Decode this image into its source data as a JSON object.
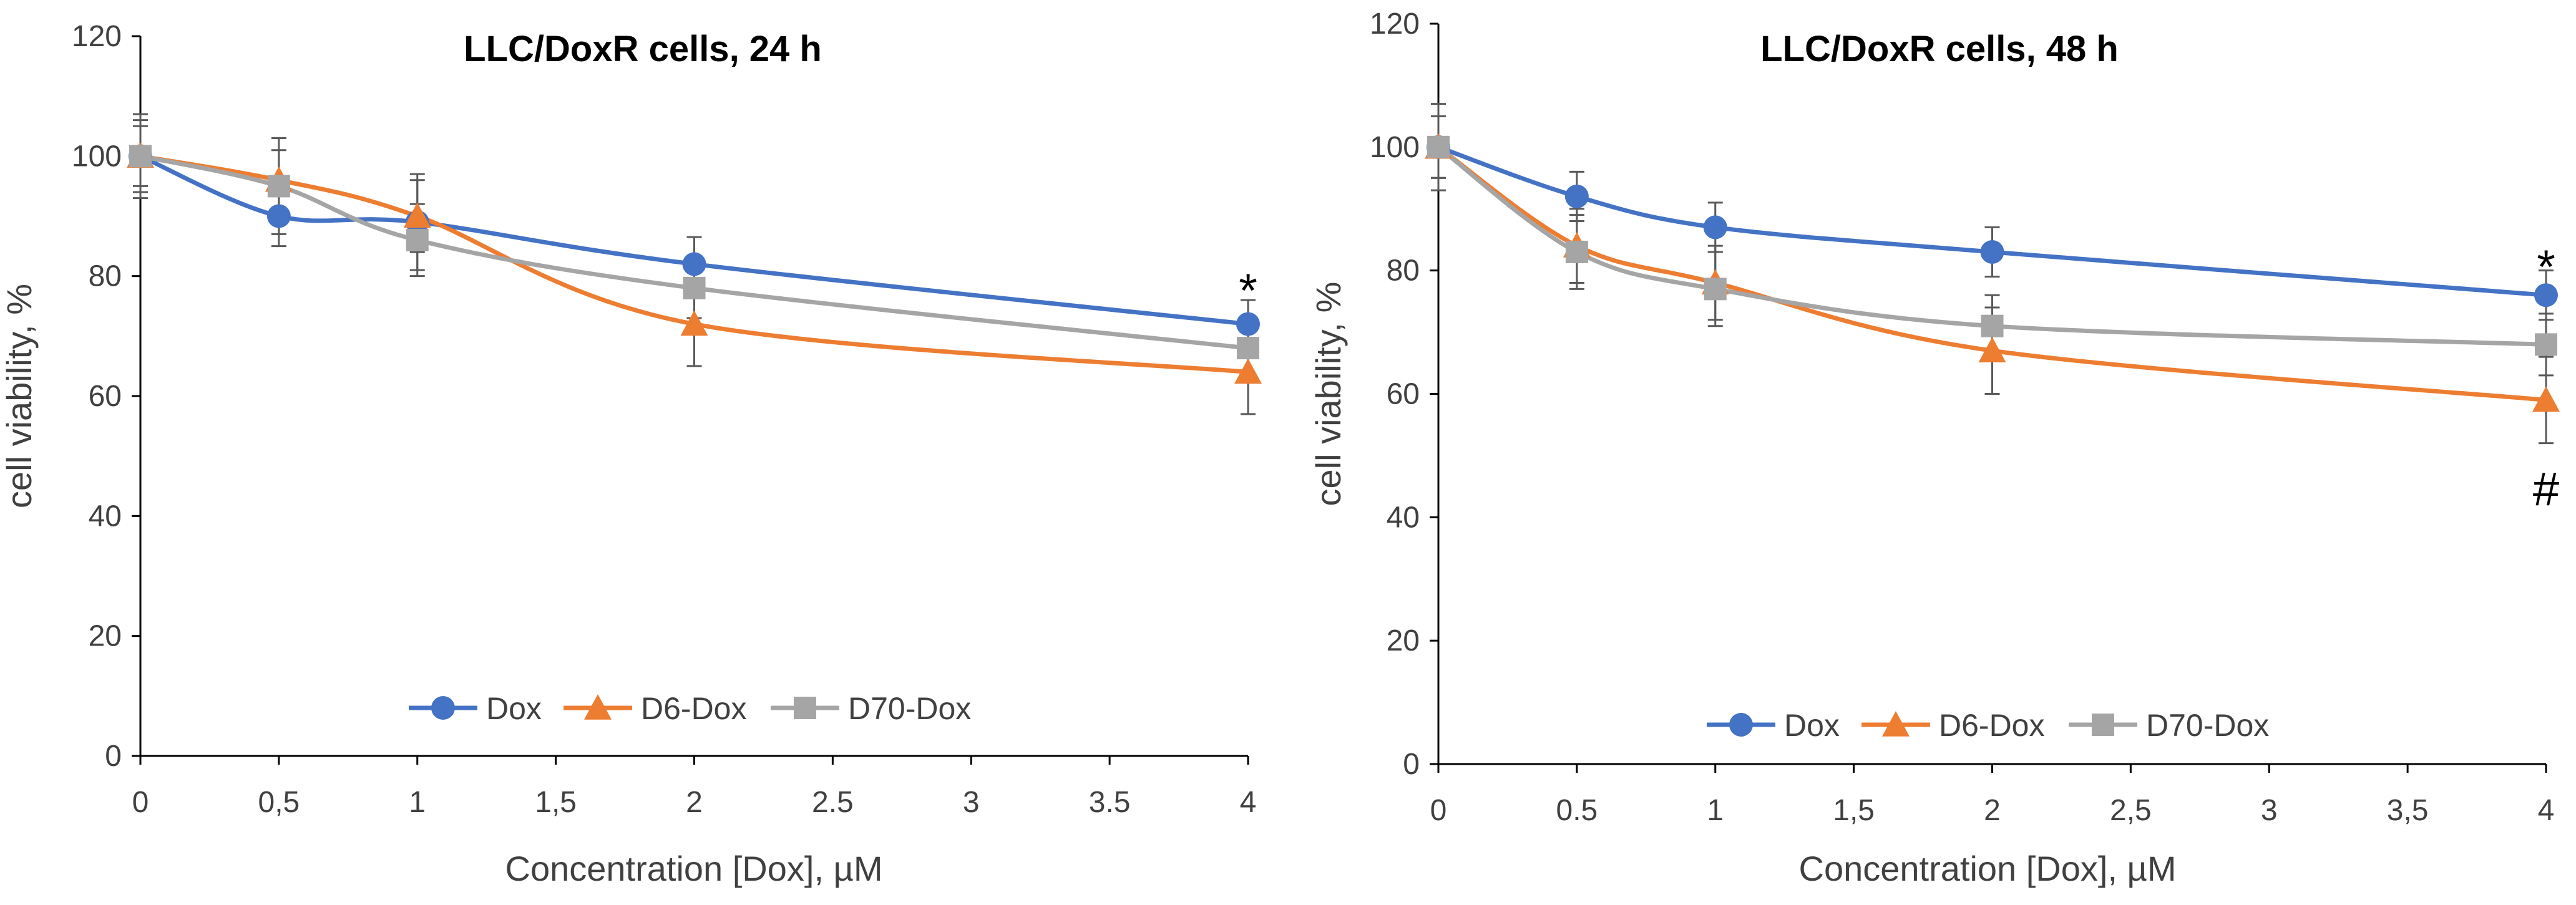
{
  "chart_data": [
    {
      "type": "line",
      "title": "LLC/DoxR cells, 24 h",
      "xlabel": "Concentration [Dox], µM",
      "ylabel": "cell viability, %",
      "xlim": [
        0,
        4
      ],
      "ylim": [
        0,
        120
      ],
      "x_ticks": [
        0,
        0.5,
        1,
        1.5,
        2,
        2.5,
        3,
        3.5,
        4
      ],
      "x_tick_labels": [
        "0",
        "0,5",
        "1",
        "1,5",
        "2",
        "2.5",
        "3",
        "3.5",
        "4"
      ],
      "y_ticks": [
        0,
        20,
        40,
        60,
        80,
        100,
        120
      ],
      "y_tick_labels": [
        "0",
        "20",
        "40",
        "60",
        "80",
        "100",
        "120"
      ],
      "grid": false,
      "legend_position": "bottom-center",
      "series": [
        {
          "name": "Dox",
          "color": "#4472C4",
          "marker": "circle",
          "x": [
            0,
            0.5,
            1,
            2,
            4
          ],
          "y": [
            100,
            90,
            89,
            82,
            72
          ],
          "error": [
            6,
            5,
            8,
            4.5,
            4
          ]
        },
        {
          "name": "D6-Dox",
          "color": "#ED7D31",
          "marker": "triangle",
          "x": [
            0,
            0.5,
            1,
            2,
            4
          ],
          "y": [
            100,
            96,
            90,
            72,
            64
          ],
          "error": [
            5,
            5,
            6,
            7,
            7
          ]
        },
        {
          "name": "D70-Dox",
          "color": "#A5A5A5",
          "marker": "square",
          "x": [
            0,
            0.5,
            1,
            2,
            4
          ],
          "y": [
            100,
            95,
            86,
            78,
            68
          ],
          "error": [
            7,
            8,
            6,
            5,
            5
          ]
        }
      ],
      "annotations": [
        {
          "text": "*",
          "x": 4,
          "y": 78
        }
      ]
    },
    {
      "type": "line",
      "title": "LLC/DoxR cells, 48 h",
      "xlabel": "Concentration [Dox], µM",
      "ylabel": "cell viability, %",
      "xlim": [
        0,
        4
      ],
      "ylim": [
        0,
        120
      ],
      "x_ticks": [
        0,
        0.5,
        1,
        1.5,
        2,
        2.5,
        3,
        3.5,
        4
      ],
      "x_tick_labels": [
        "0",
        "0.5",
        "1",
        "1,5",
        "2",
        "2,5",
        "3",
        "3,5",
        "4"
      ],
      "y_ticks": [
        0,
        20,
        40,
        60,
        80,
        100,
        120
      ],
      "y_tick_labels": [
        "0",
        "20",
        "40",
        "60",
        "80",
        "100",
        "120"
      ],
      "grid": false,
      "legend_position": "bottom-center",
      "series": [
        {
          "name": "Dox",
          "color": "#4472C4",
          "marker": "circle",
          "x": [
            0,
            0.5,
            1,
            2,
            4
          ],
          "y": [
            100,
            92,
            87,
            83,
            76
          ],
          "error": [
            5,
            4,
            4,
            4,
            4
          ]
        },
        {
          "name": "D6-Dox",
          "color": "#ED7D31",
          "marker": "triangle",
          "x": [
            0,
            0.5,
            1,
            2,
            4
          ],
          "y": [
            100,
            84,
            78,
            67,
            59
          ],
          "error": [
            5,
            6,
            6,
            7,
            7
          ]
        },
        {
          "name": "D70-Dox",
          "color": "#A5A5A5",
          "marker": "square",
          "x": [
            0,
            0.5,
            1,
            2,
            4
          ],
          "y": [
            100,
            83,
            77,
            71,
            68
          ],
          "error": [
            7,
            6,
            6,
            5,
            5
          ]
        }
      ],
      "annotations": [
        {
          "text": "*",
          "x": 4,
          "y": 81
        },
        {
          "text": "#",
          "x": 4,
          "y": 45
        }
      ]
    }
  ]
}
